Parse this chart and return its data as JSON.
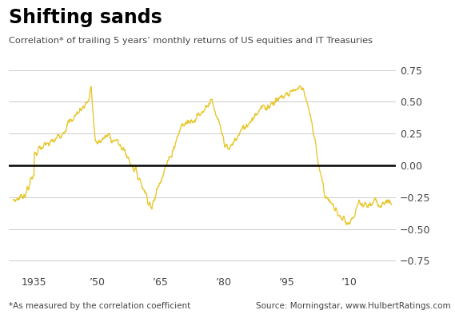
{
  "title": "Shifting sands",
  "subtitle": "Correlation* of trailing 5 years’ monthly returns of US equities and IT Treasuries",
  "footnote": "*As measured by the correlation coefficient",
  "source": "Source: Morningstar, www.HulbertRatings.com",
  "line_color": "#e8c830",
  "background_color": "#ffffff",
  "grid_color": "#cccccc",
  "xlim": [
    1929,
    2021
  ],
  "ylim": [
    -0.85,
    0.85
  ],
  "yticks": [
    -0.75,
    -0.5,
    -0.25,
    0,
    0.25,
    0.5,
    0.75
  ],
  "xticks": [
    1935,
    1950,
    1965,
    1980,
    1995,
    2010
  ],
  "xtick_labels": [
    "1935",
    "’50",
    "’65",
    "’80",
    "’95",
    "’10"
  ]
}
